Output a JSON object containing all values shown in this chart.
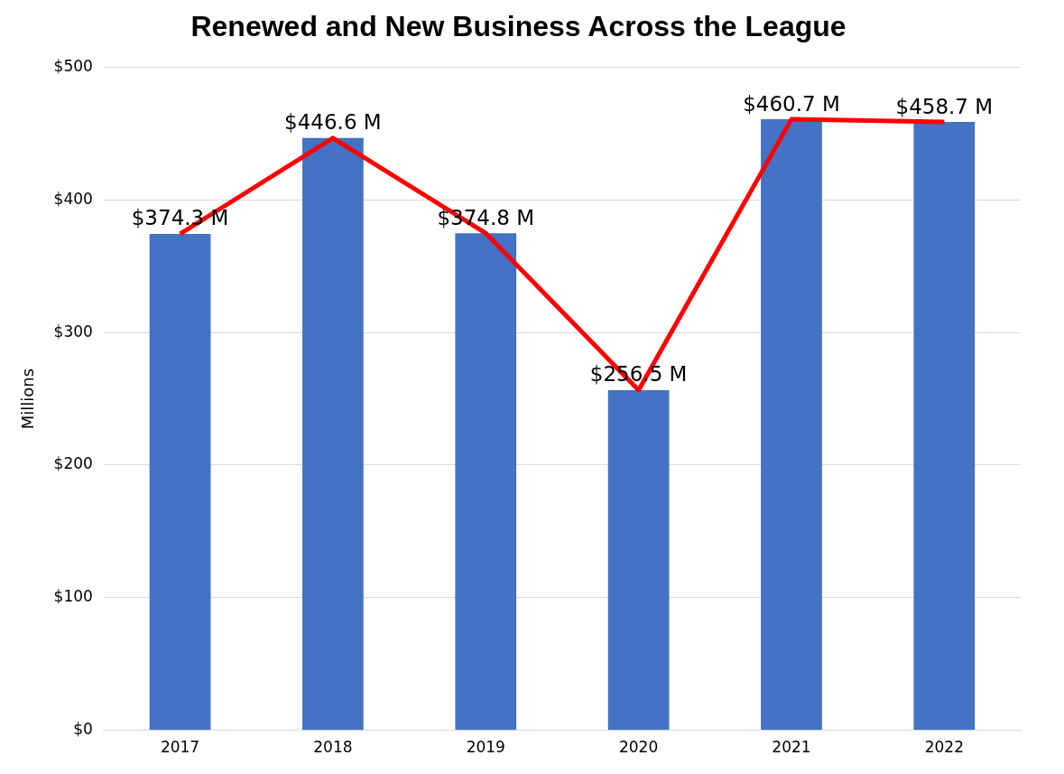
{
  "chart_data": {
    "type": "bar",
    "title": "Renewed and New Business Across the League",
    "ylabel": "Millions",
    "categories": [
      "2017",
      "2018",
      "2019",
      "2020",
      "2021",
      "2022"
    ],
    "series": [
      {
        "color": "#4472c4",
        "values": [
          374.3,
          446.6,
          374.8,
          256.5,
          460.7,
          458.7
        ],
        "value_labels": [
          "$374.3 M",
          "$446.6 M",
          "$374.8 M",
          "$256.5 M",
          "$460.7 M",
          "$458.7 M"
        ]
      },
      {
        "type": "line",
        "color": "#ff0000",
        "values": [
          374.3,
          446.6,
          374.8,
          256.5,
          460.7,
          458.7
        ],
        "marker": "none",
        "line_style": "solid"
      }
    ],
    "ylim": [
      0,
      500
    ],
    "yticks": [
      {
        "value": 0,
        "label": "$0"
      },
      {
        "value": 100,
        "label": "$100"
      },
      {
        "value": 200,
        "label": "$200"
      },
      {
        "value": 300,
        "label": "$300"
      },
      {
        "value": 400,
        "label": "$400"
      },
      {
        "value": 500,
        "label": "$500"
      }
    ],
    "grid": "y",
    "legend": false
  }
}
